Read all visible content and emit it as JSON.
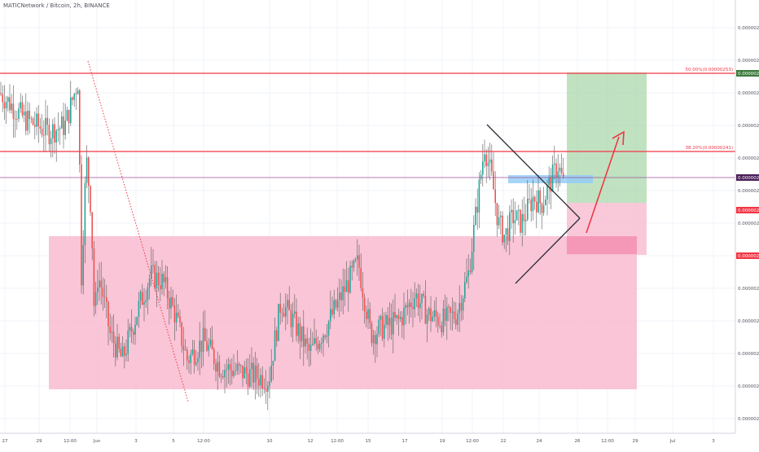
{
  "header": {
    "title": "MATICNetwork / Bitcoin, 2h, BINANCE"
  },
  "chart_data": {
    "type": "candlestick",
    "exchange": "BINANCE",
    "interval": "2h",
    "symbol": "MATICNetwork / Bitcoin",
    "y_axis": {
      "range": [
        1.99e-06,
        2.64e-06
      ],
      "ticks": [
        "0.00000260",
        "0.00000255",
        "0.00000250",
        "0.00000245",
        "0.00000240",
        "0.00000235",
        "0.00000230",
        "0.00000225",
        "0.00000220",
        "0.00000215",
        "0.00000210",
        "0.00000205",
        "0.00000200"
      ],
      "tick_values": [
        2.6e-06,
        2.55e-06,
        2.5e-06,
        2.45e-06,
        2.4e-06,
        2.35e-06,
        2.3e-06,
        2.25e-06,
        2.2e-06,
        2.15e-06,
        2.1e-06,
        2.05e-06,
        2e-06
      ]
    },
    "x_axis": {
      "ticks": [
        "27",
        "29",
        "12:00",
        "Jun",
        "3",
        "5",
        "12:00",
        "10",
        "12",
        "12:00",
        "15",
        "17",
        "19",
        "12:00",
        "22",
        "24",
        "26",
        "12:00",
        "29",
        "Jul",
        "3"
      ]
    },
    "price_labels": [
      {
        "text": "0.00000253",
        "value": 2.53e-06,
        "color": "#3a7a3a"
      },
      {
        "text": "0.00000237",
        "value": 2.37e-06,
        "color": "#4b1f5a"
      },
      {
        "text": "0.00000232",
        "value": 2.32e-06,
        "color": "#f23645"
      },
      {
        "text": "0.00000225",
        "value": 2.25e-06,
        "color": "#f23645"
      }
    ],
    "fib_levels": [
      {
        "label": "50.00%(0.00000253)",
        "value": 2.53e-06,
        "color": "#f23645"
      },
      {
        "label": "38.20%(0.00000241)",
        "value": 2.41e-06,
        "color": "#f23645"
      }
    ],
    "current_price_line": {
      "value": 2.37e-06,
      "color": "#9c4f96"
    },
    "colors": {
      "up": "#26a69a",
      "down": "#ef5350",
      "zone": "#f8bbd0",
      "target": "#a5d6a7",
      "stop": "#f8bbd0",
      "arrow": "#f23645"
    }
  }
}
